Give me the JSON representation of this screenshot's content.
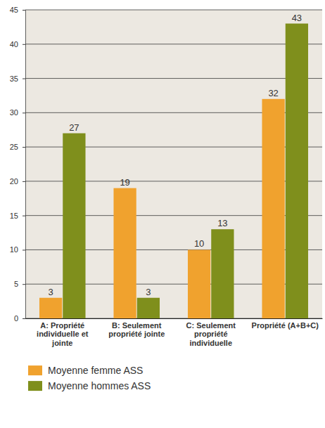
{
  "chart_data": {
    "type": "bar",
    "categories": [
      "A: Propriété individuelle et jointe",
      "B: Seulement propriété jointe",
      "C: Seulement propriété individuelle",
      "Propriété (A+B+C)"
    ],
    "series": [
      {
        "name": "Moyenne femme ASS",
        "color": "#f0a22e",
        "values": [
          3,
          19,
          10,
          32
        ]
      },
      {
        "name": "Moyenne hommes ASS",
        "color": "#7f8f1c",
        "values": [
          27,
          3,
          13,
          43
        ]
      }
    ],
    "ylim": [
      0,
      45
    ],
    "yticks": [
      0,
      5,
      10,
      15,
      20,
      25,
      30,
      35,
      40,
      45
    ],
    "grid": true,
    "data_labels": true,
    "legend": "bottom"
  }
}
